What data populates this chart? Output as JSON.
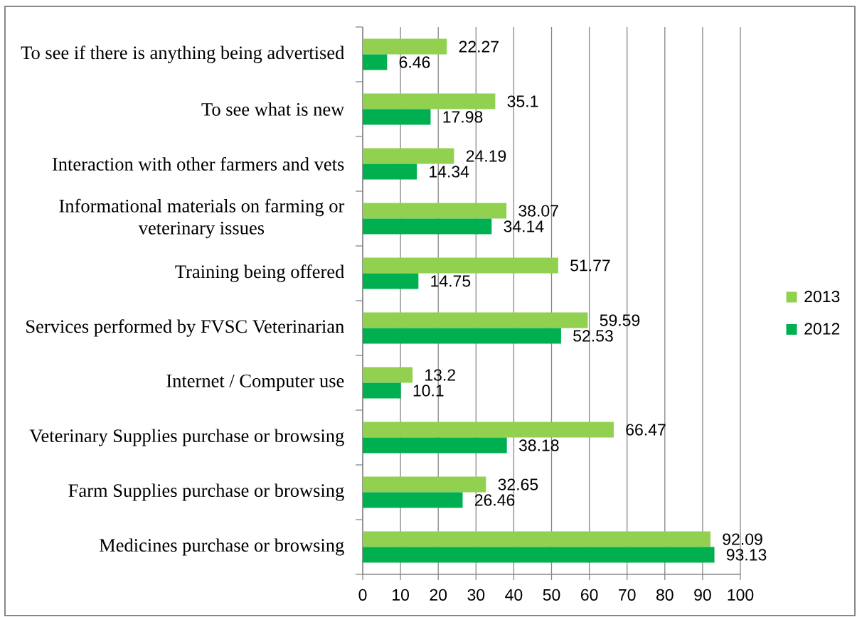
{
  "chart_data": {
    "type": "bar",
    "orientation": "horizontal",
    "categories": [
      "To see if there is anything being advertised",
      "To see what is new",
      "Interaction with other farmers and vets",
      "Informational materials on farming or veterinary issues",
      "Training being offered",
      "Services performed by FVSC Veterinarian",
      "Internet / Computer use",
      "Veterinary Supplies purchase or browsing",
      "Farm Supplies purchase or browsing",
      "Medicines purchase or browsing"
    ],
    "series": [
      {
        "name": "2013",
        "color": "#92d050",
        "values": [
          22.27,
          35.1,
          24.19,
          38.07,
          51.77,
          59.59,
          13.2,
          66.47,
          32.65,
          92.09
        ]
      },
      {
        "name": "2012",
        "color": "#00b050",
        "values": [
          6.46,
          17.98,
          14.34,
          34.14,
          14.75,
          52.53,
          10.1,
          38.18,
          26.46,
          93.13
        ]
      }
    ],
    "xlim": [
      0,
      100
    ],
    "xticks": [
      0,
      10,
      20,
      30,
      40,
      50,
      60,
      70,
      80,
      90,
      100
    ],
    "grid": "x",
    "legend": "right",
    "data_labels": true
  }
}
